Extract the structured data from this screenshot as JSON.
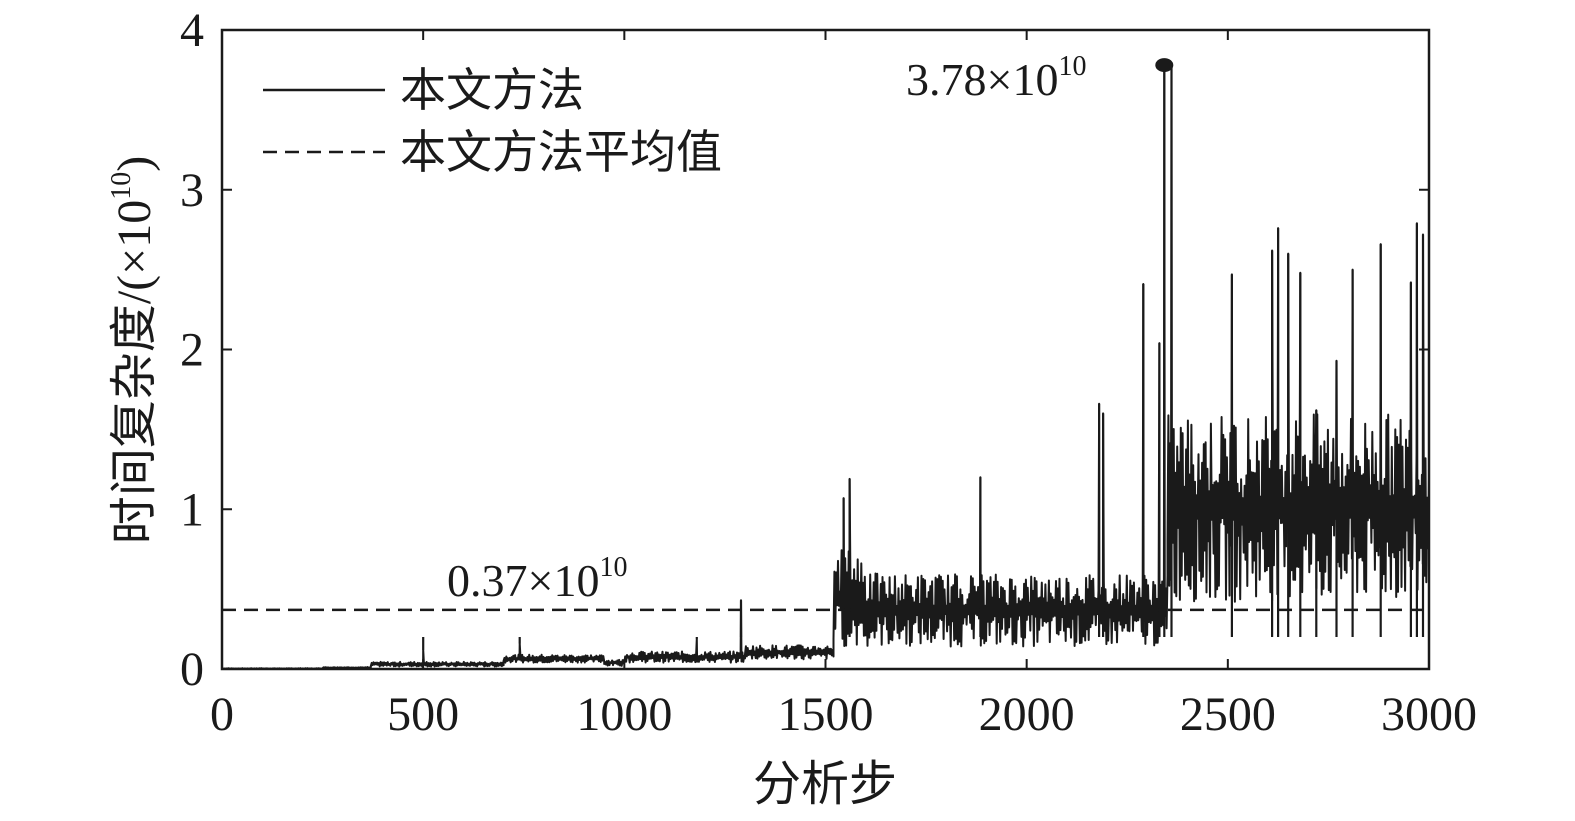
{
  "chart_data": {
    "type": "line",
    "xlabel": "分析步",
    "ylabel": "时间复杂度/(×10",
    "ylabel_sup": "10",
    "ylabel_close": ")",
    "xlim": [
      0,
      3000
    ],
    "ylim": [
      0,
      4
    ],
    "x_ticks": [
      0,
      500,
      1000,
      1500,
      2000,
      2500,
      3000
    ],
    "y_ticks": [
      0,
      1,
      2,
      3,
      4
    ],
    "grid": false,
    "legend_position": "top-left",
    "legend": [
      {
        "label": "本文方法",
        "style": "solid"
      },
      {
        "label": "本文方法平均值",
        "style": "dashed"
      }
    ],
    "annotations": [
      {
        "base": "3.78×10",
        "sup": "10",
        "x": 2342,
        "y": 3.78,
        "marker": "dot"
      },
      {
        "base": "0.37×10",
        "sup": "10",
        "x": 600,
        "y": 0.37
      }
    ],
    "series": [
      {
        "style": "solid",
        "color": "#1a1a1a",
        "segments": [
          {
            "x": [
              0,
              250
            ],
            "min": 0.0,
            "max": 0.005
          },
          {
            "x": [
              250,
              370
            ],
            "min": 0.005,
            "max": 0.012
          },
          {
            "x": [
              370,
              700
            ],
            "min": 0.015,
            "max": 0.045
          },
          {
            "x": [
              700,
              950
            ],
            "min": 0.04,
            "max": 0.09
          },
          {
            "x": [
              950,
              1000
            ],
            "min": 0.02,
            "max": 0.06
          },
          {
            "x": [
              1000,
              1300
            ],
            "min": 0.04,
            "max": 0.11
          },
          {
            "x": [
              1300,
              1520
            ],
            "min": 0.06,
            "max": 0.15
          },
          {
            "x": [
              1520,
              1600
            ],
            "min": 0.14,
            "max": 0.75
          },
          {
            "x": [
              1600,
              2350
            ],
            "min": 0.14,
            "max": 0.6
          },
          {
            "x": [
              2350,
              3000
            ],
            "min": 0.42,
            "max": 1.6
          }
        ],
        "spikes": [
          {
            "x": 500,
            "y": 0.12
          },
          {
            "x": 740,
            "y": 0.16
          },
          {
            "x": 1180,
            "y": 0.19
          },
          {
            "x": 1290,
            "y": 0.43
          },
          {
            "x": 1545,
            "y": 1.07
          },
          {
            "x": 1560,
            "y": 1.19
          },
          {
            "x": 1885,
            "y": 1.2
          },
          {
            "x": 2180,
            "y": 1.66
          },
          {
            "x": 2190,
            "y": 1.6
          },
          {
            "x": 2290,
            "y": 2.41
          },
          {
            "x": 2330,
            "y": 2.04
          },
          {
            "x": 2342,
            "y": 3.78
          },
          {
            "x": 2360,
            "y": 3.78
          },
          {
            "x": 2510,
            "y": 2.47
          },
          {
            "x": 2610,
            "y": 2.62
          },
          {
            "x": 2625,
            "y": 2.76
          },
          {
            "x": 2650,
            "y": 2.6
          },
          {
            "x": 2680,
            "y": 2.48
          },
          {
            "x": 2720,
            "y": 1.62
          },
          {
            "x": 2770,
            "y": 1.93
          },
          {
            "x": 2810,
            "y": 2.5
          },
          {
            "x": 2880,
            "y": 2.66
          },
          {
            "x": 2955,
            "y": 2.42
          },
          {
            "x": 2970,
            "y": 2.79
          },
          {
            "x": 2985,
            "y": 2.72
          }
        ]
      },
      {
        "style": "dashed",
        "color": "#1a1a1a",
        "x": [
          0,
          3000
        ],
        "y": [
          0.37,
          0.37
        ]
      }
    ]
  }
}
